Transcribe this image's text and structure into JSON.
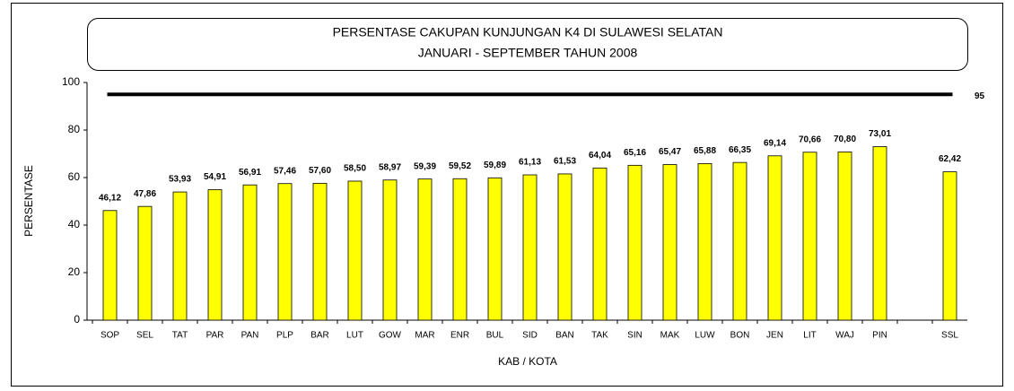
{
  "chart_data": {
    "type": "bar",
    "title": "PERSENTASE CAKUPAN KUNJUNGAN K4 DI SULAWESI SELATAN",
    "subtitle": "JANUARI - SEPTEMBER TAHUN 2008",
    "x_label": "KAB / KOTA",
    "y_label": "PERSENTASE",
    "categories": [
      "SOP",
      "SEL",
      "TAT",
      "PAR",
      "PAN",
      "PLP",
      "BAR",
      "LUT",
      "GOW",
      "MAR",
      "ENR",
      "BUL",
      "SID",
      "BAN",
      "TAK",
      "SIN",
      "MAK",
      "LUW",
      "BON",
      "JEN",
      "LIT",
      "WAJ",
      "PIN",
      null,
      "SSL"
    ],
    "values": [
      46.12,
      47.86,
      53.93,
      54.91,
      56.91,
      57.46,
      57.6,
      58.5,
      58.97,
      59.39,
      59.52,
      59.89,
      61.13,
      61.53,
      64.04,
      65.16,
      65.47,
      65.88,
      66.35,
      69.14,
      70.66,
      70.8,
      73.01,
      null,
      62.42
    ],
    "value_labels": [
      "46,12",
      "47,86",
      "53,93",
      "54,91",
      "56,91",
      "57,46",
      "57,60",
      "58,50",
      "58,97",
      "59,39",
      "59,52",
      "59,89",
      "61,13",
      "61,53",
      "64,04",
      "65,16",
      "65,47",
      "65,88",
      "66,35",
      "69,14",
      "70,66",
      "70,80",
      "73,01",
      null,
      "62,42"
    ],
    "color": "#ffff00",
    "target": 95,
    "ylim": [
      0,
      100
    ],
    "yticks": [
      0,
      20,
      40,
      60,
      80,
      100
    ],
    "grid": false
  }
}
